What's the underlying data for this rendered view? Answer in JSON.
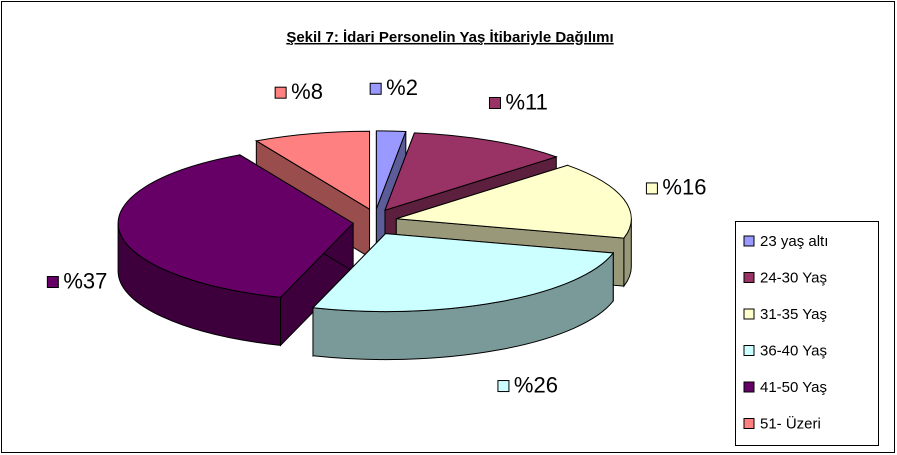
{
  "chart_data": {
    "type": "pie3d",
    "title": "Şekil 7: İdari Personelin Yaş İtibariyle Dağılımı",
    "categories": [
      "23 yaş altı",
      "24-30 Yaş",
      "31-35 Yaş",
      "36-40 Yaş",
      "41-50 Yaş",
      "51- Üzeri"
    ],
    "values": [
      2,
      11,
      16,
      26,
      37,
      8
    ],
    "value_labels": [
      "%2",
      "%11",
      "%16",
      "%26",
      "%37",
      "%8"
    ],
    "colors": [
      "#9999ff",
      "#993366",
      "#ffffcc",
      "#ccffff",
      "#660066",
      "#ff8080"
    ],
    "legend": "right"
  }
}
